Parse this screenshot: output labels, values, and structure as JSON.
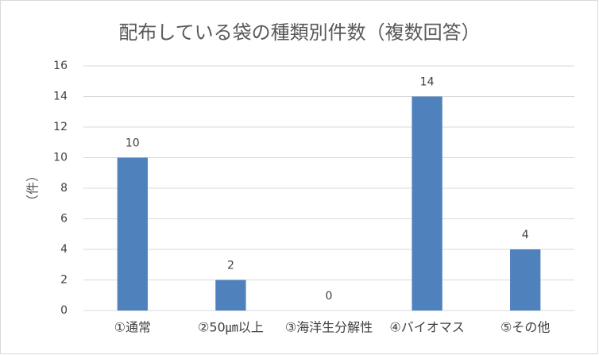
{
  "chart_data": {
    "type": "bar",
    "title": "配布している袋の種類別件数（複数回答）",
    "y_label": "（件）",
    "categories": [
      "①通常",
      "②50㎛以上",
      "③海洋生分解性",
      "④バイオマス",
      "⑤その他"
    ],
    "values": [
      10,
      2,
      0,
      14,
      4
    ],
    "color": "#4f81bd",
    "ylim": [
      0,
      16
    ],
    "yticks": [
      0,
      2,
      4,
      6,
      8,
      10,
      12,
      14,
      16
    ],
    "grid": true,
    "data_labels": true
  }
}
